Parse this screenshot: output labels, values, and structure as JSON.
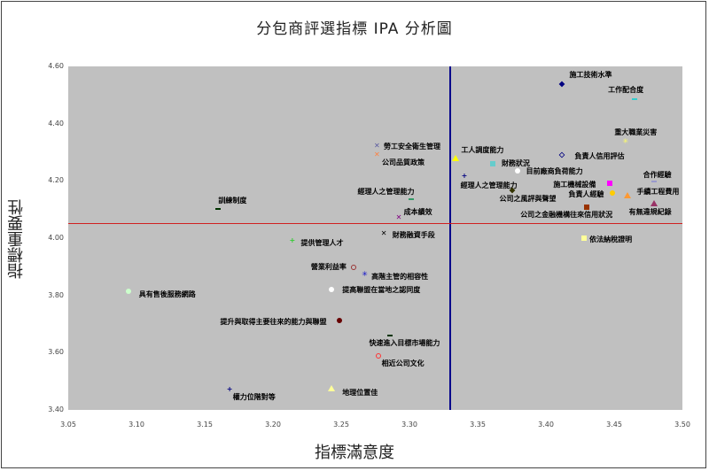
{
  "chart_data": {
    "type": "scatter",
    "title": "分包商評選指標 IPA 分析圖",
    "xlabel": "指標滿意度",
    "ylabel": "指標重要性",
    "xlim": [
      3.05,
      3.5
    ],
    "ylim": [
      3.4,
      4.6
    ],
    "x_ticks": [
      "3.05",
      "3.10",
      "3.15",
      "3.20",
      "3.25",
      "3.30",
      "3.35",
      "3.40",
      "3.45",
      "3.50"
    ],
    "y_ticks": [
      "4.60",
      "4.40",
      "4.20",
      "4.00",
      "3.80",
      "3.60",
      "3.40"
    ],
    "grid": false,
    "legend": "none",
    "reference_lines": {
      "vertical_x_mean": 3.33,
      "vertical_color": "#00008b",
      "horizontal_y_mean": 4.053,
      "horizontal_color": "#d02020"
    },
    "points": [
      {
        "label": "施工技術水準",
        "x": 3.412,
        "y": 4.538,
        "marker": "diamond",
        "color": "#000080",
        "lx": 8,
        "ly": -16
      },
      {
        "label": "工作配合度",
        "x": 3.465,
        "y": 4.486,
        "marker": "dash",
        "color": "#33cccc",
        "lx": -30,
        "ly": -16
      },
      {
        "label": "重大職業災害",
        "x": 3.458,
        "y": 4.337,
        "marker": "star",
        "color": "#ffff66",
        "lx": -12,
        "ly": -16
      },
      {
        "label": "勞工安全衛生管理",
        "x": 3.276,
        "y": 4.322,
        "marker": "x",
        "color": "#5a5aa0",
        "lx": 8,
        "ly": -5
      },
      {
        "label": "公司品質政策",
        "x": 3.276,
        "y": 4.291,
        "marker": "x",
        "color": "#ff8040",
        "lx": 6,
        "ly": 3
      },
      {
        "label": "工人調度能力",
        "x": 3.334,
        "y": 4.281,
        "marker": "triangle",
        "color": "#ffff00",
        "lx": 6,
        "ly": -14
      },
      {
        "label": "負責人信用評估",
        "x": 3.412,
        "y": 4.291,
        "marker": "diamond-open",
        "color": "#000080",
        "lx": 14,
        "ly": -4
      },
      {
        "label": "財務狀況",
        "x": 3.361,
        "y": 4.26,
        "marker": "square",
        "color": "#66cccc",
        "lx": 10,
        "ly": -6
      },
      {
        "label": "目前廠商負荷能力",
        "x": 3.379,
        "y": 4.235,
        "marker": "circle",
        "color": "#ffffff",
        "lx": 10,
        "ly": -5
      },
      {
        "label": "經理人之管理能力",
        "x": 3.34,
        "y": 4.216,
        "marker": "plus",
        "color": "#000080",
        "lx": -4,
        "ly": 5
      },
      {
        "label": "合作經驗",
        "x": 3.479,
        "y": 4.198,
        "marker": "dash",
        "color": "#9999cc",
        "lx": -12,
        "ly": -13
      },
      {
        "label": "施工機械設備",
        "x": 3.447,
        "y": 4.192,
        "marker": "square",
        "color": "#ff00ff",
        "lx": -64,
        "ly": -4
      },
      {
        "label": "負責人經驗",
        "x": 3.449,
        "y": 4.158,
        "marker": "circle",
        "color": "#ffcc00",
        "lx": -50,
        "ly": -4
      },
      {
        "label": "手續工程費用",
        "x": 3.46,
        "y": 4.152,
        "marker": "triangle",
        "color": "#ff9933",
        "lx": 10,
        "ly": -9
      },
      {
        "label": "公司之風評與聲望",
        "x": 3.375,
        "y": 4.167,
        "marker": "diamond",
        "color": "#333300",
        "lx": -14,
        "ly": 4
      },
      {
        "label": "經理人之管理能力",
        "x": 3.301,
        "y": 4.136,
        "marker": "dash",
        "color": "#339966",
        "lx": -60,
        "ly": -14
      },
      {
        "label": "有無違規紀錄",
        "x": 3.479,
        "y": 4.124,
        "marker": "triangle",
        "color": "#993366",
        "lx": -28,
        "ly": 5
      },
      {
        "label": "公司之金融機構往來信用狀況",
        "x": 3.43,
        "y": 4.108,
        "marker": "square",
        "color": "#993300",
        "lx": -75,
        "ly": 3
      },
      {
        "label": "訓練制度",
        "x": 3.16,
        "y": 4.102,
        "marker": "dash",
        "color": "#003300",
        "lx": 0,
        "ly": -15
      },
      {
        "label": "成本績效",
        "x": 3.292,
        "y": 4.071,
        "marker": "x",
        "color": "#800080",
        "lx": 6,
        "ly": -12
      },
      {
        "label": "財務融資手段",
        "x": 3.281,
        "y": 4.016,
        "marker": "x",
        "color": "#000000",
        "lx": 10,
        "ly": -4
      },
      {
        "label": "依法納稅證明",
        "x": 3.428,
        "y": 4.0,
        "marker": "square",
        "color": "#ffff99",
        "lx": 6,
        "ly": -4
      },
      {
        "label": "提供管理人才",
        "x": 3.214,
        "y": 3.991,
        "marker": "plus",
        "color": "#33cc33",
        "lx": 10,
        "ly": -3
      },
      {
        "label": "營業利益率",
        "x": 3.259,
        "y": 3.898,
        "marker": "circle-open",
        "color": "#993333",
        "lx": -48,
        "ly": -6
      },
      {
        "label": "高階主管的相容性",
        "x": 3.267,
        "y": 3.873,
        "marker": "star",
        "color": "#0000cc",
        "lx": 8,
        "ly": -3
      },
      {
        "label": "提高聯盟在當地之認同度",
        "x": 3.243,
        "y": 3.82,
        "marker": "circle",
        "color": "#ffffff",
        "lx": 12,
        "ly": -5
      },
      {
        "label": "具有售後服務網路",
        "x": 3.094,
        "y": 3.814,
        "marker": "circle",
        "color": "#ccffcc",
        "lx": 12,
        "ly": -2
      },
      {
        "label": "提升與取得主要往來的能力與聯盟",
        "x": 3.249,
        "y": 3.712,
        "marker": "circle",
        "color": "#660000",
        "lx": -135,
        "ly": -4
      },
      {
        "label": "快速進入目標市場能力",
        "x": 3.286,
        "y": 3.66,
        "marker": "dash",
        "color": "#003300",
        "lx": -24,
        "ly": 3
      },
      {
        "label": "相近公司文化",
        "x": 3.277,
        "y": 3.589,
        "marker": "circle-open",
        "color": "#ff3333",
        "lx": 4,
        "ly": 3
      },
      {
        "label": "權力位階對等",
        "x": 3.168,
        "y": 3.471,
        "marker": "plus",
        "color": "#000080",
        "lx": 4,
        "ly": 3
      },
      {
        "label": "地理位置佳",
        "x": 3.243,
        "y": 3.477,
        "marker": "triangle",
        "color": "#ffff99",
        "lx": 12,
        "ly": 0
      }
    ]
  }
}
